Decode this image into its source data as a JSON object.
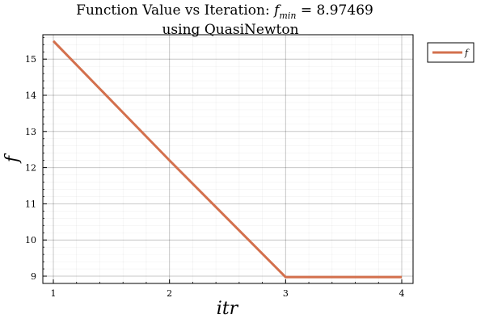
{
  "chart_data": {
    "type": "line",
    "title_prefix": "Function Value vs Iteration: ",
    "title_symbol": "f",
    "title_subscript": "min",
    "title_suffix": " =  8.97469",
    "subtitle": "using QuasiNewton",
    "xlabel": "itr",
    "ylabel": "f",
    "xlim": [
      1,
      4
    ],
    "ylim": [
      9,
      15.5
    ],
    "xticks": [
      1,
      2,
      3,
      4
    ],
    "yticks": [
      9,
      10,
      11,
      12,
      13,
      14,
      15
    ],
    "grid": true,
    "legend_position": "top-right",
    "series": [
      {
        "name": "f",
        "color": "#d3704d",
        "x": [
          1,
          2,
          3,
          4
        ],
        "y": [
          15.5,
          12.2,
          8.97469,
          8.97469
        ]
      }
    ]
  }
}
